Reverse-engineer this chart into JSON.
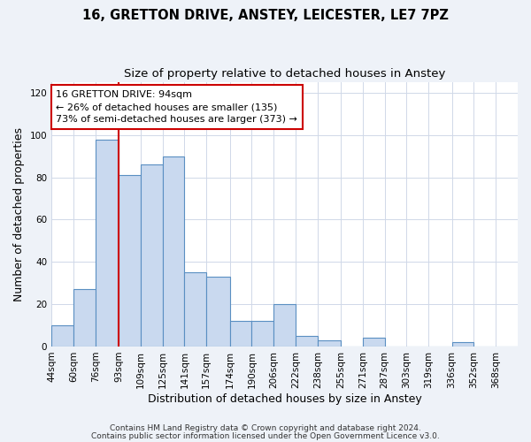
{
  "title": "16, GRETTON DRIVE, ANSTEY, LEICESTER, LE7 7PZ",
  "subtitle": "Size of property relative to detached houses in Anstey",
  "xlabel": "Distribution of detached houses by size in Anstey",
  "ylabel": "Number of detached properties",
  "bin_labels": [
    "44sqm",
    "60sqm",
    "76sqm",
    "93sqm",
    "109sqm",
    "125sqm",
    "141sqm",
    "157sqm",
    "174sqm",
    "190sqm",
    "206sqm",
    "222sqm",
    "238sqm",
    "255sqm",
    "271sqm",
    "287sqm",
    "303sqm",
    "319sqm",
    "336sqm",
    "352sqm",
    "368sqm"
  ],
  "bin_edges": [
    44,
    60,
    76,
    93,
    109,
    125,
    141,
    157,
    174,
    190,
    206,
    222,
    238,
    255,
    271,
    287,
    303,
    319,
    336,
    352,
    368,
    384
  ],
  "counts": [
    10,
    27,
    98,
    81,
    86,
    90,
    35,
    33,
    12,
    12,
    20,
    5,
    3,
    0,
    4,
    0,
    0,
    0,
    2,
    0,
    0
  ],
  "bar_color": "#c9d9ef",
  "bar_edge_color": "#5a8fc2",
  "bar_linewidth": 0.8,
  "vline_x": 93,
  "vline_color": "#cc0000",
  "vline_linewidth": 1.5,
  "annotation_line1": "16 GRETTON DRIVE: 94sqm",
  "annotation_line2": "← 26% of detached houses are smaller (135)",
  "annotation_line3": "73% of semi-detached houses are larger (373) →",
  "box_edge_color": "#cc0000",
  "box_face_color": "white",
  "ylim": [
    0,
    125
  ],
  "yticks": [
    0,
    20,
    40,
    60,
    80,
    100,
    120
  ],
  "footer_line1": "Contains HM Land Registry data © Crown copyright and database right 2024.",
  "footer_line2": "Contains public sector information licensed under the Open Government Licence v3.0.",
  "background_color": "#eef2f8",
  "plot_bg_color": "white",
  "grid_color": "#d0d8e8",
  "title_fontsize": 10.5,
  "subtitle_fontsize": 9.5,
  "xlabel_fontsize": 9,
  "ylabel_fontsize": 9,
  "tick_fontsize": 7.5,
  "annotation_fontsize": 8,
  "footer_fontsize": 6.5
}
